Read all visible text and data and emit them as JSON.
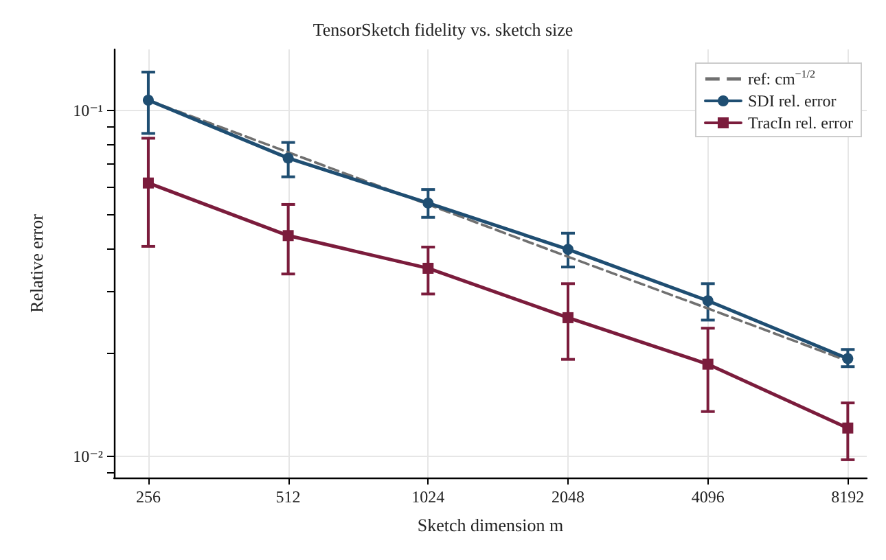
{
  "chart_data": {
    "type": "line",
    "title": "TensorSketch fidelity vs. sketch size",
    "xlabel": "Sketch dimension m",
    "ylabel": "Relative error",
    "x": [
      256,
      512,
      1024,
      2048,
      4096,
      8192
    ],
    "series": [
      {
        "name": "ref: cm$^{−1/2}$",
        "color": "#707070",
        "line_style": "dashed",
        "marker": "none",
        "values": [
          0.107,
          0.0757,
          0.0535,
          0.0378,
          0.0268,
          0.0189
        ]
      },
      {
        "name": "SDI rel. error",
        "color": "#1f4e72",
        "line_style": "solid",
        "marker": "circle",
        "values": [
          0.107,
          0.0728,
          0.054,
          0.0397,
          0.0282,
          0.0192
        ],
        "errors": [
          [
            0.0858,
            0.129
          ],
          [
            0.0643,
            0.0808
          ],
          [
            0.0491,
            0.0591
          ],
          [
            0.0353,
            0.0442
          ],
          [
            0.0248,
            0.0316
          ],
          [
            0.0182,
            0.0204
          ]
        ]
      },
      {
        "name": "TracIn rel. error",
        "color": "#7b1c3c",
        "line_style": "solid",
        "marker": "square",
        "values": [
          0.0617,
          0.0435,
          0.035,
          0.0252,
          0.0185,
          0.0121
        ],
        "errors": [
          [
            0.0405,
            0.0831
          ],
          [
            0.0337,
            0.0535
          ],
          [
            0.0295,
            0.0403
          ],
          [
            0.0191,
            0.0316
          ],
          [
            0.0135,
            0.0235
          ],
          [
            0.0098,
            0.0143
          ]
        ]
      }
    ],
    "log": "xy",
    "xlim": [
      216,
      9000
    ],
    "xticks": [
      256,
      512,
      1024,
      2048,
      4096,
      8192
    ],
    "ylim": [
      0.0087,
      0.15
    ],
    "yticks": [
      {
        "value": 0.009,
        "label": null
      },
      {
        "value": 0.01,
        "label": "10⁻²"
      },
      {
        "value": 0.02,
        "label": null
      },
      {
        "value": 0.03,
        "label": null
      },
      {
        "value": 0.04,
        "label": null
      },
      {
        "value": 0.05,
        "label": null
      },
      {
        "value": 0.06,
        "label": null
      },
      {
        "value": 0.07,
        "label": null
      },
      {
        "value": 0.08,
        "label": null
      },
      {
        "value": 0.09,
        "label": null
      },
      {
        "value": 0.1,
        "label": "10⁻¹"
      }
    ],
    "grid": true,
    "legend": "top right"
  }
}
